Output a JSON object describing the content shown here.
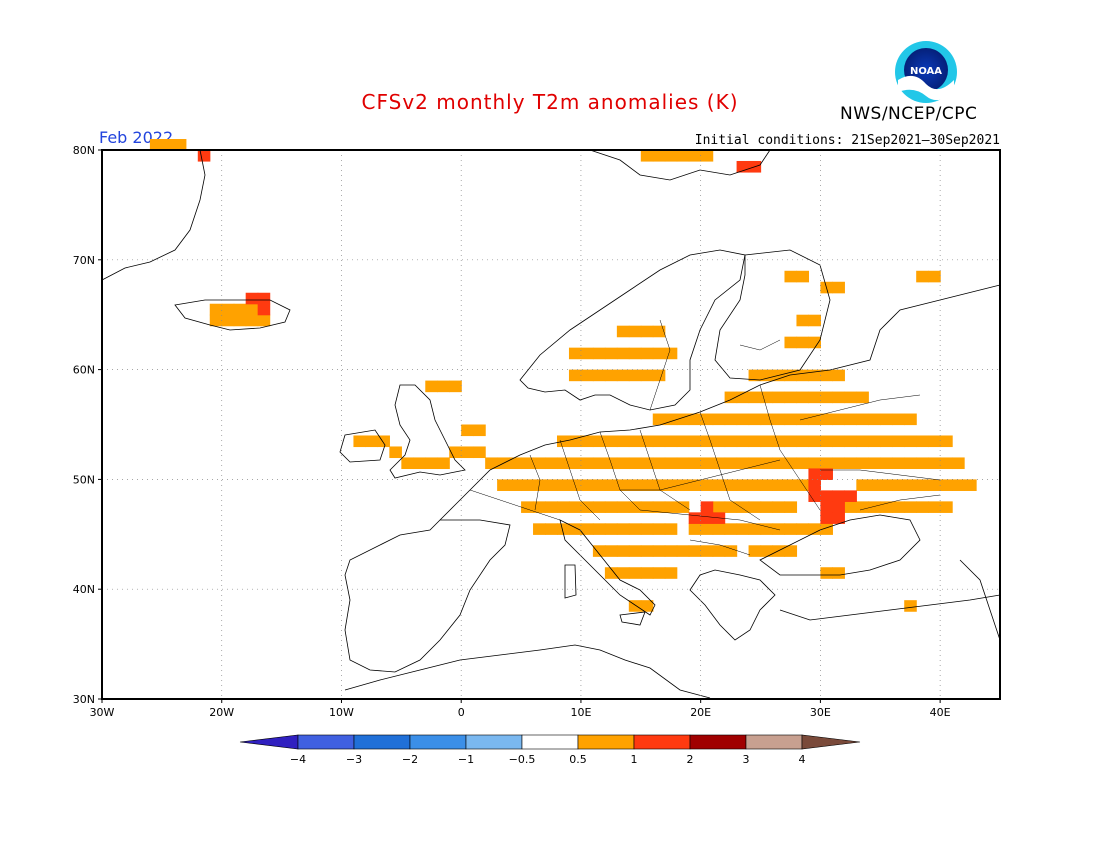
{
  "header": {
    "title": "CFSv2 monthly T2m anomalies (K)",
    "agency": "NWS/NCEP/CPC",
    "month": "Feb 2022",
    "initial_conditions": "Initial conditions: 21Sep2021–30Sep2021",
    "logo_text": "NOAA"
  },
  "map": {
    "region": "Europe",
    "lon_range": [
      -30,
      45
    ],
    "lat_range": [
      30,
      80
    ],
    "lon_ticks": [
      {
        "value": -30,
        "label": "30W"
      },
      {
        "value": -20,
        "label": "20W"
      },
      {
        "value": -10,
        "label": "10W"
      },
      {
        "value": 0,
        "label": "0"
      },
      {
        "value": 10,
        "label": "10E"
      },
      {
        "value": 20,
        "label": "20E"
      },
      {
        "value": 30,
        "label": "30E"
      },
      {
        "value": 40,
        "label": "40E"
      }
    ],
    "lat_ticks": [
      {
        "value": 30,
        "label": "30N"
      },
      {
        "value": 40,
        "label": "40N"
      },
      {
        "value": 50,
        "label": "50N"
      },
      {
        "value": 60,
        "label": "60N"
      },
      {
        "value": 70,
        "label": "70N"
      },
      {
        "value": 80,
        "label": "80N"
      }
    ],
    "grid": "dotted",
    "anomaly_cells_0p5_to_1": [
      [
        -5,
        51
      ],
      [
        -4,
        51
      ],
      [
        -3,
        51
      ],
      [
        -2,
        51
      ],
      [
        0,
        52
      ],
      [
        -1,
        52
      ],
      [
        1,
        52
      ],
      [
        2,
        51
      ],
      [
        3,
        51
      ],
      [
        4,
        51
      ],
      [
        5,
        51
      ],
      [
        6,
        51
      ],
      [
        7,
        51
      ],
      [
        8,
        51
      ],
      [
        9,
        51
      ],
      [
        10,
        51
      ],
      [
        11,
        51
      ],
      [
        12,
        51
      ],
      [
        13,
        51
      ],
      [
        14,
        51
      ],
      [
        15,
        51
      ],
      [
        16,
        51
      ],
      [
        17,
        51
      ],
      [
        18,
        51
      ],
      [
        19,
        51
      ],
      [
        20,
        51
      ],
      [
        21,
        51
      ],
      [
        22,
        51
      ],
      [
        23,
        51
      ],
      [
        24,
        51
      ],
      [
        25,
        51
      ],
      [
        26,
        51
      ],
      [
        27,
        51
      ],
      [
        28,
        51
      ],
      [
        29,
        51
      ],
      [
        30,
        51
      ],
      [
        31,
        51
      ],
      [
        32,
        51
      ],
      [
        33,
        51
      ],
      [
        34,
        51
      ],
      [
        35,
        51
      ],
      [
        36,
        51
      ],
      [
        37,
        51
      ],
      [
        38,
        51
      ],
      [
        39,
        51
      ],
      [
        40,
        51
      ],
      [
        41,
        51
      ],
      [
        3,
        49
      ],
      [
        4,
        49
      ],
      [
        5,
        49
      ],
      [
        6,
        49
      ],
      [
        7,
        49
      ],
      [
        8,
        49
      ],
      [
        9,
        49
      ],
      [
        10,
        49
      ],
      [
        11,
        49
      ],
      [
        12,
        49
      ],
      [
        13,
        49
      ],
      [
        14,
        49
      ],
      [
        15,
        49
      ],
      [
        16,
        49
      ],
      [
        17,
        49
      ],
      [
        18,
        49
      ],
      [
        19,
        49
      ],
      [
        20,
        49
      ],
      [
        21,
        49
      ],
      [
        22,
        49
      ],
      [
        23,
        49
      ],
      [
        24,
        49
      ],
      [
        25,
        49
      ],
      [
        26,
        49
      ],
      [
        27,
        49
      ],
      [
        28,
        49
      ],
      [
        33,
        49
      ],
      [
        34,
        49
      ],
      [
        35,
        49
      ],
      [
        36,
        49
      ],
      [
        37,
        49
      ],
      [
        38,
        49
      ],
      [
        39,
        49
      ],
      [
        40,
        49
      ],
      [
        41,
        49
      ],
      [
        42,
        49
      ],
      [
        5,
        47
      ],
      [
        6,
        47
      ],
      [
        7,
        47
      ],
      [
        8,
        47
      ],
      [
        9,
        47
      ],
      [
        10,
        47
      ],
      [
        11,
        47
      ],
      [
        12,
        47
      ],
      [
        13,
        47
      ],
      [
        14,
        47
      ],
      [
        15,
        47
      ],
      [
        16,
        47
      ],
      [
        17,
        47
      ],
      [
        18,
        47
      ],
      [
        21,
        47
      ],
      [
        22,
        47
      ],
      [
        23,
        47
      ],
      [
        24,
        47
      ],
      [
        25,
        47
      ],
      [
        26,
        47
      ],
      [
        27,
        47
      ],
      [
        32,
        47
      ],
      [
        33,
        47
      ],
      [
        34,
        47
      ],
      [
        35,
        47
      ],
      [
        36,
        47
      ],
      [
        37,
        47
      ],
      [
        38,
        47
      ],
      [
        39,
        47
      ],
      [
        40,
        47
      ],
      [
        6,
        45
      ],
      [
        7,
        45
      ],
      [
        8,
        45
      ],
      [
        9,
        45
      ],
      [
        10,
        45
      ],
      [
        11,
        45
      ],
      [
        12,
        45
      ],
      [
        13,
        45
      ],
      [
        14,
        45
      ],
      [
        15,
        45
      ],
      [
        16,
        45
      ],
      [
        17,
        45
      ],
      [
        19,
        45
      ],
      [
        20,
        45
      ],
      [
        21,
        45
      ],
      [
        22,
        45
      ],
      [
        23,
        45
      ],
      [
        24,
        45
      ],
      [
        25,
        45
      ],
      [
        26,
        45
      ],
      [
        27,
        45
      ],
      [
        28,
        45
      ],
      [
        29,
        45
      ],
      [
        30,
        45
      ],
      [
        11,
        43
      ],
      [
        12,
        43
      ],
      [
        13,
        43
      ],
      [
        14,
        43
      ],
      [
        15,
        43
      ],
      [
        16,
        43
      ],
      [
        17,
        43
      ],
      [
        18,
        43
      ],
      [
        19,
        43
      ],
      [
        20,
        43
      ],
      [
        21,
        43
      ],
      [
        22,
        43
      ],
      [
        24,
        43
      ],
      [
        25,
        43
      ],
      [
        26,
        43
      ],
      [
        27,
        43
      ],
      [
        8,
        53
      ],
      [
        9,
        53
      ],
      [
        10,
        53
      ],
      [
        11,
        53
      ],
      [
        12,
        53
      ],
      [
        13,
        53
      ],
      [
        14,
        53
      ],
      [
        15,
        53
      ],
      [
        16,
        53
      ],
      [
        17,
        53
      ],
      [
        18,
        53
      ],
      [
        19,
        53
      ],
      [
        20,
        53
      ],
      [
        21,
        53
      ],
      [
        22,
        53
      ],
      [
        23,
        53
      ],
      [
        24,
        53
      ],
      [
        25,
        53
      ],
      [
        26,
        53
      ],
      [
        27,
        53
      ],
      [
        28,
        53
      ],
      [
        29,
        53
      ],
      [
        30,
        53
      ],
      [
        31,
        53
      ],
      [
        32,
        53
      ],
      [
        33,
        53
      ],
      [
        34,
        53
      ],
      [
        35,
        53
      ],
      [
        36,
        53
      ],
      [
        37,
        53
      ],
      [
        38,
        53
      ],
      [
        39,
        53
      ],
      [
        40,
        53
      ],
      [
        16,
        55
      ],
      [
        17,
        55
      ],
      [
        18,
        55
      ],
      [
        19,
        55
      ],
      [
        20,
        55
      ],
      [
        21,
        55
      ],
      [
        22,
        55
      ],
      [
        23,
        55
      ],
      [
        24,
        55
      ],
      [
        25,
        55
      ],
      [
        26,
        55
      ],
      [
        27,
        55
      ],
      [
        28,
        55
      ],
      [
        29,
        55
      ],
      [
        30,
        55
      ],
      [
        31,
        55
      ],
      [
        32,
        55
      ],
      [
        33,
        55
      ],
      [
        34,
        55
      ],
      [
        35,
        55
      ],
      [
        36,
        55
      ],
      [
        37,
        55
      ],
      [
        22,
        57
      ],
      [
        23,
        57
      ],
      [
        24,
        57
      ],
      [
        25,
        57
      ],
      [
        26,
        57
      ],
      [
        27,
        57
      ],
      [
        28,
        57
      ],
      [
        29,
        57
      ],
      [
        30,
        57
      ],
      [
        31,
        57
      ],
      [
        32,
        57
      ],
      [
        33,
        57
      ],
      [
        9,
        59
      ],
      [
        10,
        59
      ],
      [
        11,
        59
      ],
      [
        12,
        59
      ],
      [
        13,
        59
      ],
      [
        14,
        59
      ],
      [
        15,
        59
      ],
      [
        16,
        59
      ],
      [
        24,
        59
      ],
      [
        25,
        59
      ],
      [
        26,
        59
      ],
      [
        27,
        59
      ],
      [
        28,
        59
      ],
      [
        29,
        59
      ],
      [
        30,
        59
      ],
      [
        31,
        59
      ],
      [
        9,
        61
      ],
      [
        10,
        61
      ],
      [
        11,
        61
      ],
      [
        12,
        61
      ],
      [
        13,
        61
      ],
      [
        14,
        61
      ],
      [
        15,
        61
      ],
      [
        16,
        61
      ],
      [
        17,
        61
      ],
      [
        13,
        63
      ],
      [
        14,
        63
      ],
      [
        15,
        63
      ],
      [
        16,
        63
      ],
      [
        -21,
        64
      ],
      [
        -20,
        64
      ],
      [
        -19,
        64
      ],
      [
        -18,
        64
      ],
      [
        -17,
        64
      ],
      [
        -21,
        65
      ],
      [
        -20,
        65
      ],
      [
        -19,
        65
      ],
      [
        -18,
        65
      ],
      [
        27,
        62
      ],
      [
        28,
        62
      ],
      [
        29,
        62
      ],
      [
        28,
        64
      ],
      [
        29,
        64
      ],
      [
        30,
        67
      ],
      [
        31,
        67
      ],
      [
        27,
        68
      ],
      [
        28,
        68
      ],
      [
        38,
        68
      ],
      [
        39,
        68
      ],
      [
        -26,
        80
      ],
      [
        -25,
        80
      ],
      [
        -24,
        80
      ],
      [
        15,
        79
      ],
      [
        16,
        79
      ],
      [
        17,
        79
      ],
      [
        18,
        79
      ],
      [
        19,
        79
      ],
      [
        20,
        79
      ],
      [
        -3,
        58
      ],
      [
        -2,
        58
      ],
      [
        -1,
        58
      ],
      [
        -9,
        53
      ],
      [
        -8,
        53
      ],
      [
        -7,
        53
      ],
      [
        -6,
        52
      ],
      [
        0,
        54
      ],
      [
        1,
        54
      ],
      [
        12,
        41
      ],
      [
        13,
        41
      ],
      [
        14,
        41
      ],
      [
        15,
        41
      ],
      [
        16,
        41
      ],
      [
        17,
        41
      ],
      [
        30,
        41
      ],
      [
        31,
        41
      ],
      [
        37,
        38
      ],
      [
        14,
        38
      ],
      [
        15,
        38
      ]
    ],
    "anomaly_cells_1_to_2": [
      [
        -18,
        66
      ],
      [
        -17,
        66
      ],
      [
        -17,
        65
      ],
      [
        -22,
        79
      ],
      [
        20,
        47
      ],
      [
        21,
        46
      ],
      [
        19,
        46
      ],
      [
        20,
        46
      ],
      [
        29,
        48
      ],
      [
        30,
        48
      ],
      [
        31,
        48
      ],
      [
        32,
        48
      ],
      [
        29,
        49
      ],
      [
        30,
        47
      ],
      [
        31,
        47
      ],
      [
        30,
        46
      ],
      [
        31,
        46
      ],
      [
        29,
        50
      ],
      [
        30,
        50
      ],
      [
        23,
        78
      ],
      [
        24,
        78
      ]
    ]
  },
  "colorbar": {
    "labels": [
      "−4",
      "−3",
      "−2",
      "−1",
      "−0.5",
      "0.5",
      "1",
      "2",
      "3",
      "4"
    ],
    "colors": [
      "#3020c0",
      "#4060e0",
      "#2070d8",
      "#3b8fe8",
      "#7ab8f0",
      "#ffffff",
      "#ffa200",
      "#ff3a10",
      "#a00000",
      "#c8a090",
      "#7a4a3a"
    ]
  },
  "legend_colors": {
    "0.5 to 1": "#ffa200",
    "1 to 2": "#ff3a10"
  }
}
